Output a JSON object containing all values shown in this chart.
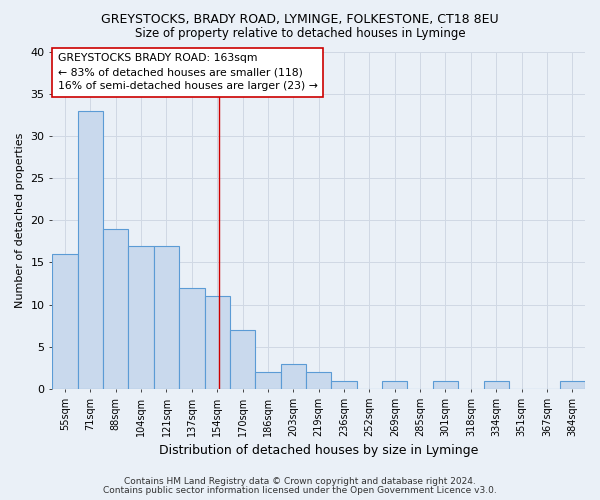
{
  "title": "GREYSTOCKS, BRADY ROAD, LYMINGE, FOLKESTONE, CT18 8EU",
  "subtitle": "Size of property relative to detached houses in Lyminge",
  "xlabel": "Distribution of detached houses by size in Lyminge",
  "ylabel": "Number of detached properties",
  "bin_labels": [
    "55sqm",
    "71sqm",
    "88sqm",
    "104sqm",
    "121sqm",
    "137sqm",
    "154sqm",
    "170sqm",
    "186sqm",
    "203sqm",
    "219sqm",
    "236sqm",
    "252sqm",
    "269sqm",
    "285sqm",
    "301sqm",
    "318sqm",
    "334sqm",
    "351sqm",
    "367sqm",
    "384sqm"
  ],
  "bar_values": [
    16,
    33,
    19,
    17,
    17,
    12,
    11,
    7,
    2,
    3,
    2,
    1,
    0,
    1,
    0,
    1,
    0,
    1,
    0,
    0,
    1
  ],
  "bar_color": "#c9d9ed",
  "bar_edge_color": "#5b9bd5",
  "grid_color": "#d0d8e4",
  "bg_color": "#eaf0f7",
  "marker_line_color": "#cc0000",
  "ylim": [
    0,
    40
  ],
  "yticks": [
    0,
    5,
    10,
    15,
    20,
    25,
    30,
    35,
    40
  ],
  "annotation_line1": "GREYSTOCKS BRADY ROAD: 163sqm",
  "annotation_line2": "← 83% of detached houses are smaller (118)",
  "annotation_line3": "16% of semi-detached houses are larger (23) →",
  "footnote1": "Contains HM Land Registry data © Crown copyright and database right 2024.",
  "footnote2": "Contains public sector information licensed under the Open Government Licence v3.0."
}
